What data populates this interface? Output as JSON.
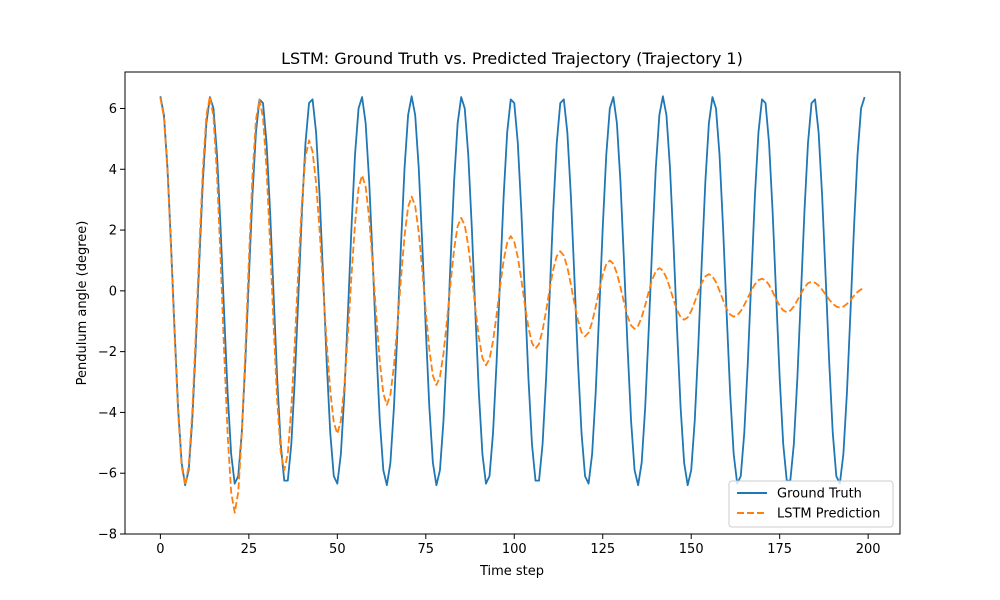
{
  "chart_data": {
    "type": "line",
    "title": "LSTM: Ground Truth vs. Predicted Trajectory (Trajectory 1)",
    "xlabel": "Time step",
    "ylabel": "Pendulum angle (degree)",
    "xlim": [
      -10,
      209
    ],
    "ylim": [
      -8,
      7.2
    ],
    "xticks": [
      0,
      25,
      50,
      75,
      100,
      125,
      150,
      175,
      200
    ],
    "yticks": [
      -8,
      -6,
      -4,
      -2,
      0,
      2,
      4,
      6
    ],
    "grid": false,
    "legend_position": "lower-right",
    "n_points": 200,
    "series": [
      {
        "name": "Ground Truth",
        "color": "#1f77b4",
        "style": "solid",
        "model": {
          "kind": "sinusoid",
          "amplitude": 6.4,
          "period": 14.2,
          "phase": 0.0
        }
      },
      {
        "name": "LSTM Prediction",
        "color": "#ff7f0e",
        "style": "dashed",
        "points": [
          [
            0,
            6.35
          ],
          [
            7,
            -6.4
          ],
          [
            14,
            6.4
          ],
          [
            21,
            -7.3
          ],
          [
            28,
            6.3
          ],
          [
            35,
            -5.9
          ],
          [
            42,
            4.95
          ],
          [
            50,
            -4.7
          ],
          [
            57,
            3.8
          ],
          [
            64,
            -3.75
          ],
          [
            71,
            3.1
          ],
          [
            78,
            -3.1
          ],
          [
            85,
            2.4
          ],
          [
            92,
            -2.45
          ],
          [
            99,
            1.8
          ],
          [
            106,
            -1.9
          ],
          [
            113,
            1.3
          ],
          [
            120,
            -1.5
          ],
          [
            127,
            1.0
          ],
          [
            134,
            -1.25
          ],
          [
            141,
            0.75
          ],
          [
            148,
            -0.95
          ],
          [
            155,
            0.55
          ],
          [
            162,
            -0.85
          ],
          [
            170,
            0.4
          ],
          [
            177,
            -0.7
          ],
          [
            184,
            0.3
          ],
          [
            192,
            -0.55
          ],
          [
            199,
            0.08
          ]
        ]
      }
    ]
  }
}
